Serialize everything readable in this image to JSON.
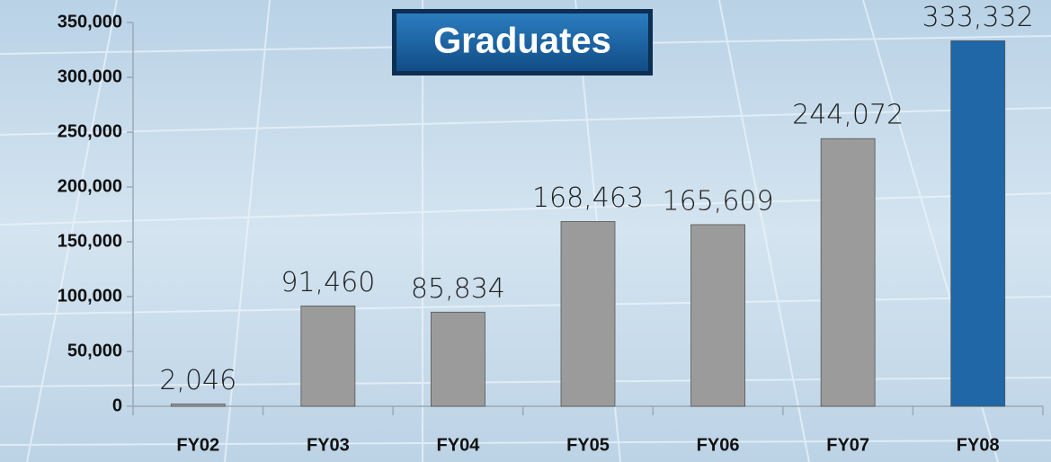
{
  "chart_data": {
    "type": "bar",
    "title": "Graduates",
    "categories": [
      "FY02",
      "FY03",
      "FY04",
      "FY05",
      "FY06",
      "FY07",
      "FY08"
    ],
    "values": [
      2046,
      91460,
      85834,
      168463,
      165609,
      244072,
      333332
    ],
    "value_labels": [
      "2,046",
      "91,460",
      "85,834",
      "168,463",
      "165,609",
      "244,072",
      "333,332"
    ],
    "colors": [
      "#9b9b9b",
      "#9b9b9b",
      "#9b9b9b",
      "#9b9b9b",
      "#9b9b9b",
      "#9b9b9b",
      "#1f67a6"
    ],
    "ylim": [
      0,
      350000
    ],
    "yticks": [
      {
        "value": 0,
        "label": "0"
      },
      {
        "value": 50000,
        "label": "50,000"
      },
      {
        "value": 100000,
        "label": "100,000"
      },
      {
        "value": 150000,
        "label": "150,000"
      },
      {
        "value": 200000,
        "label": "200,000"
      },
      {
        "value": 250000,
        "label": "250,000"
      },
      {
        "value": 300000,
        "label": "300,000"
      },
      {
        "value": 350000,
        "label": "350,000"
      }
    ]
  }
}
